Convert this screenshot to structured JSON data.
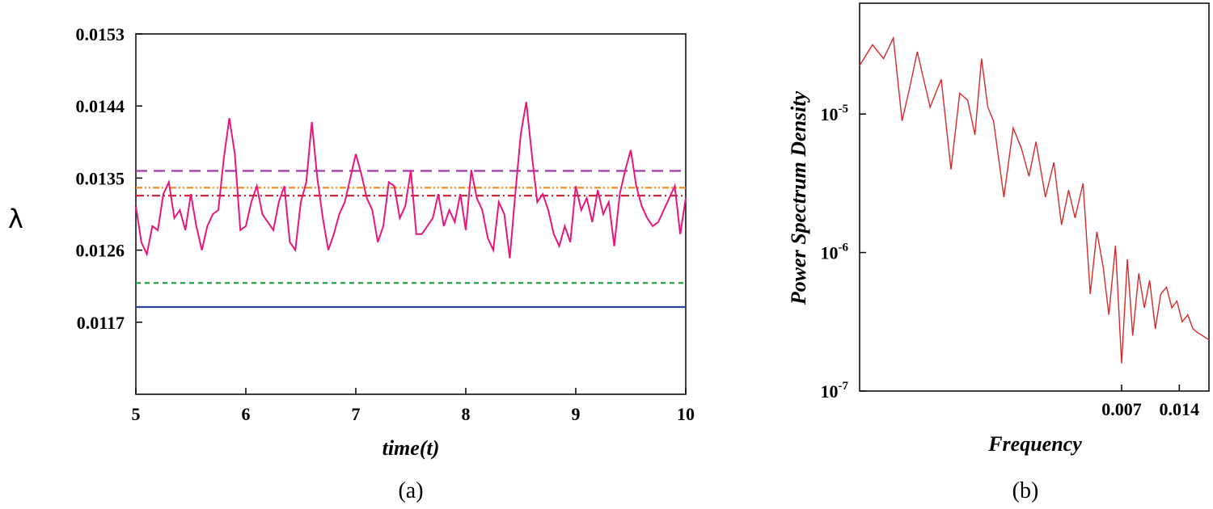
{
  "chart_data": [
    {
      "panel": "a",
      "type": "line",
      "caption": "(a)",
      "xlabel": "time(t)",
      "ylabel": "λ",
      "xlim": [
        5,
        10
      ],
      "ylim": [
        0.0108,
        0.0153
      ],
      "x_ticks": [
        "5",
        "6",
        "7",
        "8",
        "9",
        "10"
      ],
      "y_ticks": [
        "0.0117",
        "0.0126",
        "0.0135",
        "0.0144",
        "0.0153"
      ],
      "reference_lines": [
        {
          "name": "purple-dashed",
          "y": 0.01359,
          "color": "#a23aa8",
          "dash": "14,8"
        },
        {
          "name": "orange-dash-dot-dot",
          "y": 0.01338,
          "color": "#f08a1c",
          "dash": "8,3,2,3,2,3"
        },
        {
          "name": "red-dash-dot",
          "y": 0.01328,
          "color": "#c8202a",
          "dash": "10,4,2,4"
        },
        {
          "name": "green-dashed",
          "y": 0.01219,
          "color": "#20a040",
          "dash": "6,5"
        },
        {
          "name": "blue-solid",
          "y": 0.01189,
          "color": "#3040a0",
          "dash": ""
        }
      ],
      "series": [
        {
          "name": "lambda",
          "color": "#e8167c",
          "x": [
            5.0,
            5.05,
            5.1,
            5.15,
            5.2,
            5.25,
            5.3,
            5.35,
            5.4,
            5.45,
            5.5,
            5.55,
            5.6,
            5.65,
            5.7,
            5.75,
            5.8,
            5.85,
            5.9,
            5.95,
            6.0,
            6.05,
            6.1,
            6.15,
            6.2,
            6.25,
            6.3,
            6.35,
            6.4,
            6.45,
            6.5,
            6.55,
            6.6,
            6.65,
            6.7,
            6.75,
            6.8,
            6.85,
            6.9,
            6.95,
            7.0,
            7.05,
            7.1,
            7.15,
            7.2,
            7.25,
            7.3,
            7.35,
            7.4,
            7.45,
            7.5,
            7.55,
            7.6,
            7.65,
            7.7,
            7.75,
            7.8,
            7.85,
            7.9,
            7.95,
            8.0,
            8.05,
            8.1,
            8.15,
            8.2,
            8.25,
            8.3,
            8.35,
            8.4,
            8.45,
            8.5,
            8.55,
            8.6,
            8.65,
            8.7,
            8.75,
            8.8,
            8.85,
            8.9,
            8.95,
            9.0,
            9.05,
            9.1,
            9.15,
            9.2,
            9.25,
            9.3,
            9.35,
            9.4,
            9.45,
            9.5,
            9.55,
            9.6,
            9.65,
            9.7,
            9.75,
            9.8,
            9.85,
            9.9,
            9.95,
            10.0
          ],
          "y": [
            0.01315,
            0.0127,
            0.01255,
            0.0129,
            0.01285,
            0.0133,
            0.01345,
            0.013,
            0.0131,
            0.01285,
            0.0133,
            0.0129,
            0.0126,
            0.0129,
            0.01305,
            0.0131,
            0.01375,
            0.01425,
            0.0138,
            0.01285,
            0.0129,
            0.0132,
            0.0134,
            0.01305,
            0.01295,
            0.01285,
            0.0132,
            0.0134,
            0.0127,
            0.0126,
            0.0132,
            0.01345,
            0.0142,
            0.0135,
            0.013,
            0.0126,
            0.0128,
            0.01305,
            0.0132,
            0.0135,
            0.0138,
            0.01355,
            0.01325,
            0.0131,
            0.0127,
            0.0129,
            0.01345,
            0.0134,
            0.013,
            0.01315,
            0.0136,
            0.0128,
            0.0128,
            0.0129,
            0.013,
            0.0133,
            0.0129,
            0.0131,
            0.01295,
            0.0133,
            0.01285,
            0.0136,
            0.01325,
            0.0131,
            0.01275,
            0.0126,
            0.0132,
            0.01305,
            0.0125,
            0.0133,
            0.01405,
            0.01445,
            0.0138,
            0.0132,
            0.0133,
            0.0131,
            0.0128,
            0.01265,
            0.0129,
            0.0127,
            0.0134,
            0.0131,
            0.01325,
            0.01295,
            0.01335,
            0.01305,
            0.0132,
            0.01265,
            0.0133,
            0.0136,
            0.01385,
            0.0134,
            0.01315,
            0.013,
            0.0129,
            0.01295,
            0.0131,
            0.01325,
            0.0134,
            0.0128,
            0.01325
          ]
        }
      ]
    },
    {
      "panel": "b",
      "type": "line",
      "caption": "(b)",
      "xlabel": "Frequency",
      "ylabel": "Power Spectrum Density",
      "x_scale": "log",
      "y_scale": "log",
      "xlim": [
        0.0003,
        0.02
      ],
      "ylim_log10": [
        -7,
        -4.2
      ],
      "x_ticks": [
        "0.007",
        "0.014"
      ],
      "y_ticks": [
        {
          "base": "10",
          "exp": "-5"
        },
        {
          "base": "10",
          "exp": "-6"
        },
        {
          "base": "10",
          "exp": "-7"
        }
      ],
      "series": [
        {
          "name": "psd",
          "color": "#d42a2a",
          "f": [
            0.0003,
            0.00035,
            0.0004,
            0.00045,
            0.0005,
            0.00055,
            0.0006,
            0.0007,
            0.0008,
            0.0009,
            0.001,
            0.0011,
            0.0012,
            0.0013,
            0.0014,
            0.0015,
            0.0017,
            0.0019,
            0.0021,
            0.0023,
            0.0025,
            0.0028,
            0.0031,
            0.0034,
            0.0037,
            0.004,
            0.0044,
            0.0048,
            0.0052,
            0.0056,
            0.006,
            0.0065,
            0.007,
            0.0075,
            0.008,
            0.0086,
            0.0092,
            0.0098,
            0.0105,
            0.0112,
            0.012,
            0.0128,
            0.0136,
            0.0145,
            0.0155,
            0.0165,
            0.0175,
            0.0185,
            0.0195,
            0.02
          ],
          "log10_psd": [
            -4.65,
            -4.5,
            -4.6,
            -4.45,
            -5.05,
            -4.8,
            -4.55,
            -4.95,
            -4.75,
            -5.4,
            -4.85,
            -4.9,
            -5.15,
            -4.6,
            -4.95,
            -5.05,
            -5.6,
            -5.1,
            -5.25,
            -5.45,
            -5.2,
            -5.6,
            -5.35,
            -5.8,
            -5.55,
            -5.75,
            -5.5,
            -6.3,
            -5.85,
            -6.1,
            -6.45,
            -5.95,
            -6.8,
            -6.05,
            -6.6,
            -6.15,
            -6.4,
            -6.2,
            -6.55,
            -6.3,
            -6.25,
            -6.4,
            -6.35,
            -6.5,
            -6.45,
            -6.55,
            -6.58,
            -6.6,
            -6.62,
            -6.63
          ]
        }
      ]
    }
  ]
}
